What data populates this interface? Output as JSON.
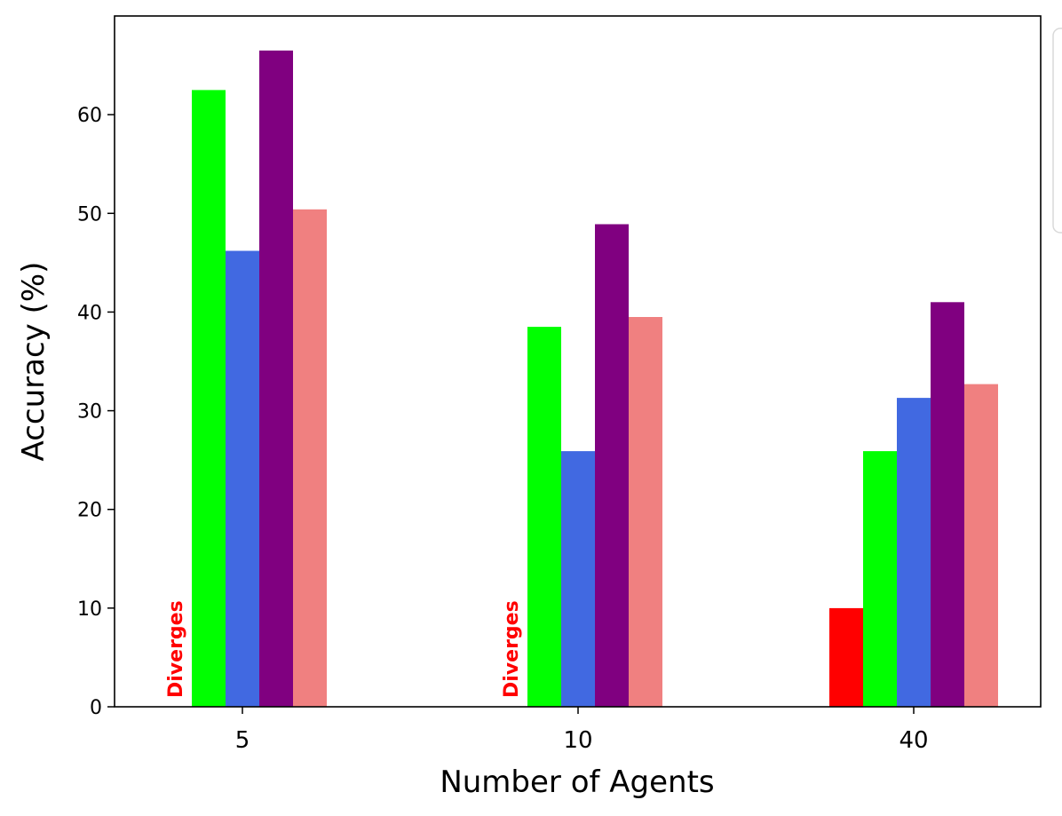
{
  "chart_data": {
    "type": "bar",
    "title": "",
    "xlabel": "Number of Agents",
    "ylabel": "Accuracy (%)",
    "categories": [
      "5",
      "10",
      "40"
    ],
    "ylim": [
      0,
      70
    ],
    "yticks": [
      0,
      10,
      20,
      30,
      40,
      50,
      60
    ],
    "grid": false,
    "legend": "right, cut off (entries not visible)",
    "series": [
      {
        "color": "#ff0000",
        "values": [
          null,
          null,
          10
        ]
      },
      {
        "color": "#00ff00",
        "values": [
          62.5,
          38.5,
          25.9
        ]
      },
      {
        "color": "#4169e1",
        "values": [
          46.2,
          25.9,
          31.3
        ]
      },
      {
        "color": "#800080",
        "values": [
          66.5,
          48.9,
          41.0
        ]
      },
      {
        "color": "#f08080",
        "values": [
          50.4,
          39.5,
          32.7
        ]
      }
    ],
    "annotations": [
      {
        "text": "Diverges",
        "category": "5",
        "series_index": 0,
        "color": "#ff0000"
      },
      {
        "text": "Diverges",
        "category": "10",
        "series_index": 0,
        "color": "#ff0000"
      }
    ]
  }
}
